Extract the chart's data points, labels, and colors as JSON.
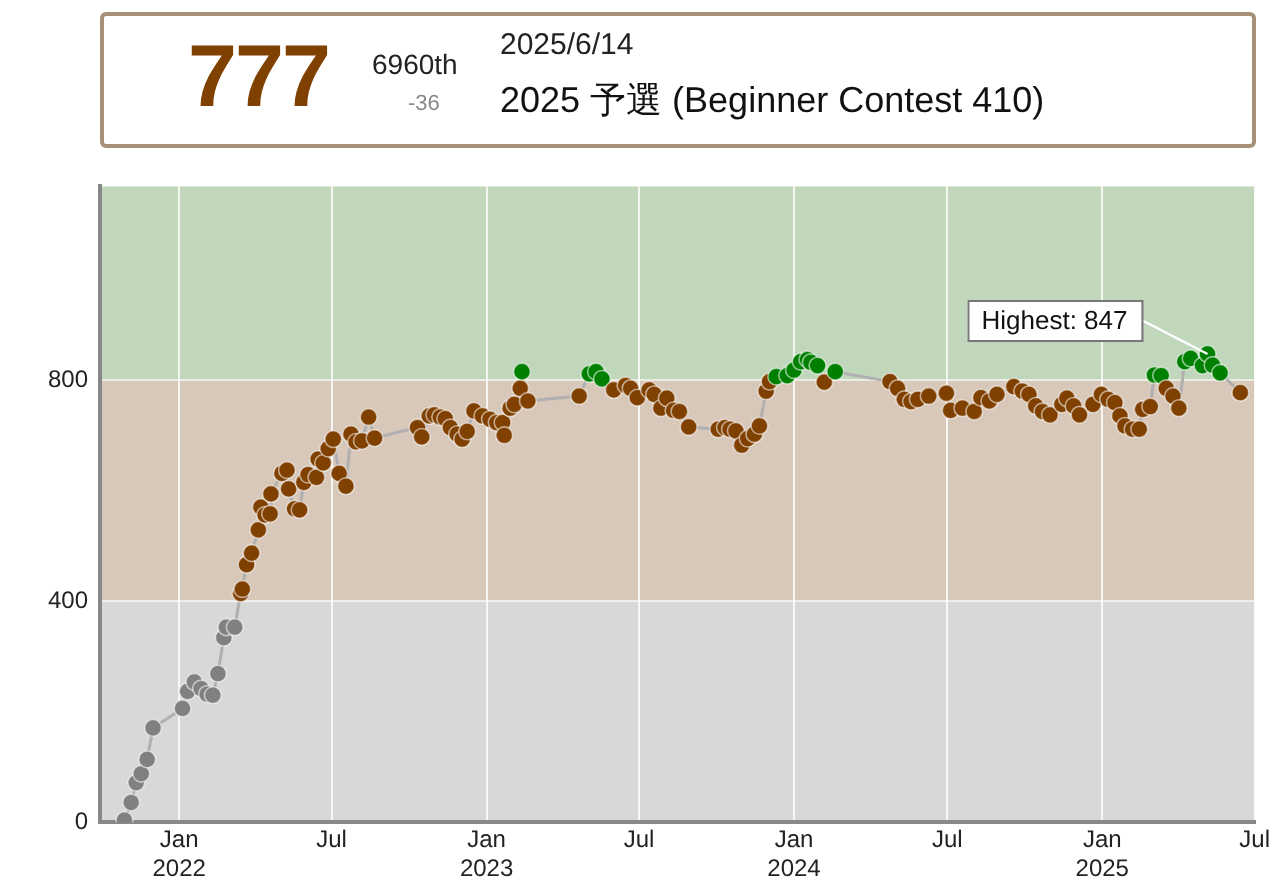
{
  "chart_data": {
    "type": "line",
    "annotations": [
      "777",
      "6960th",
      "-36",
      "2025/6/14",
      "2025 予選 (Beginner Contest 410)",
      {
        "text": "Highest: 847",
        "x": "2025-05-06",
        "y": 847
      }
    ],
    "xlim": [
      "2021-09-29",
      "2025-07-01"
    ],
    "xticks": [
      {
        "value": "2022-01-01",
        "label": "Jan 2022"
      },
      {
        "value": "2022-07-01",
        "label": "Jul"
      },
      {
        "value": "2023-01-01",
        "label": "Jan 2023"
      },
      {
        "value": "2023-07-01",
        "label": "Jul"
      },
      {
        "value": "2024-01-01",
        "label": "Jan 2024"
      },
      {
        "value": "2024-07-01",
        "label": "Jul"
      },
      {
        "value": "2025-01-01",
        "label": "Jan 2025"
      },
      {
        "value": "2025-07-01",
        "label": "Jul"
      }
    ],
    "ylim": [
      0,
      1150
    ],
    "yticks": [
      0,
      400,
      800
    ],
    "grid": true,
    "marker": "circle",
    "line_style": "solid",
    "bands": [
      {
        "axis": "y",
        "from": 0,
        "to": 400,
        "color": "#d8d8d8"
      },
      {
        "axis": "y",
        "from": 400,
        "to": 800,
        "color": "#d8c8ba"
      },
      {
        "axis": "y",
        "from": 800,
        "to": 1150,
        "color": "#c0d7bb"
      }
    ],
    "series": [
      {
        "color": "#b0b0b0",
        "x": [
          "2021-10-28",
          "2021-11-05",
          "2021-11-11",
          "2021-11-17",
          "2021-11-24",
          "2021-12-01",
          "2022-01-05",
          "2022-01-11",
          "2022-01-19",
          "2022-01-27",
          "2022-02-03",
          "2022-02-10",
          "2022-02-16",
          "2022-02-23",
          "2022-02-26",
          "2022-03-08",
          "2022-03-15",
          "2022-03-17",
          "2022-03-22",
          "2022-03-28",
          "2022-04-05",
          "2022-04-08",
          "2022-04-13",
          "2022-04-19",
          "2022-04-20",
          "2022-05-03",
          "2022-05-09",
          "2022-05-11",
          "2022-05-18",
          "2022-05-24",
          "2022-05-29",
          "2022-06-03",
          "2022-06-13",
          "2022-06-15",
          "2022-06-21",
          "2022-06-27",
          "2022-07-03",
          "2022-07-10",
          "2022-07-18",
          "2022-07-24",
          "2022-07-30",
          "2022-08-06",
          "2022-08-14",
          "2022-08-21",
          "2022-10-11",
          "2022-10-16",
          "2022-10-25",
          "2022-10-31",
          "2022-11-07",
          "2022-11-13",
          "2022-11-19",
          "2022-11-27",
          "2022-12-03",
          "2022-12-09",
          "2022-12-17",
          "2022-12-27",
          "2023-01-05",
          "2023-01-13",
          "2023-01-20",
          "2023-01-22",
          "2023-01-29",
          "2023-02-03",
          "2023-02-10",
          "2023-02-12",
          "2023-02-19",
          "2023-04-21",
          "2023-05-03",
          "2023-05-11",
          "2023-05-18",
          "2023-06-01",
          "2023-06-15",
          "2023-06-21",
          "2023-06-29",
          "2023-07-13",
          "2023-07-19",
          "2023-07-27",
          "2023-08-03",
          "2023-08-11",
          "2023-08-18",
          "2023-08-29",
          "2023-10-03",
          "2023-10-11",
          "2023-10-17",
          "2023-10-24",
          "2023-10-31",
          "2023-11-07",
          "2023-11-15",
          "2023-11-21",
          "2023-11-29",
          "2023-12-03",
          "2023-12-11",
          "2023-12-24",
          "2024-01-01",
          "2024-01-09",
          "2024-01-17",
          "2024-01-21",
          "2024-01-29",
          "2024-02-06",
          "2024-02-19",
          "2024-04-24",
          "2024-05-03",
          "2024-05-11",
          "2024-05-19",
          "2024-05-27",
          "2024-06-09",
          "2024-06-30",
          "2024-07-05",
          "2024-07-19",
          "2024-08-02",
          "2024-08-10",
          "2024-08-20",
          "2024-08-29",
          "2024-09-18",
          "2024-09-28",
          "2024-10-06",
          "2024-10-14",
          "2024-10-22",
          "2024-10-31",
          "2024-11-14",
          "2024-11-20",
          "2024-11-28",
          "2024-12-05",
          "2024-12-21",
          "2024-12-31",
          "2025-01-08",
          "2025-01-16",
          "2025-01-22",
          "2025-01-28",
          "2025-02-06",
          "2025-02-14",
          "2025-02-18",
          "2025-02-27",
          "2025-03-04",
          "2025-03-12",
          "2025-03-18",
          "2025-03-26",
          "2025-04-02",
          "2025-04-09",
          "2025-04-16",
          "2025-04-30",
          "2025-05-06",
          "2025-05-12",
          "2025-05-21",
          "2025-06-14"
        ],
        "values": [
          4,
          36,
          72,
          88,
          114,
          171,
          206,
          237,
          254,
          242,
          232,
          230,
          269,
          334,
          353,
          353,
          414,
          422,
          466,
          487,
          529,
          570,
          556,
          558,
          594,
          631,
          637,
          603,
          567,
          565,
          615,
          629,
          624,
          657,
          650,
          676,
          693,
          631,
          608,
          702,
          688,
          690,
          733,
          695,
          714,
          697,
          735,
          737,
          733,
          730,
          714,
          702,
          693,
          707,
          744,
          735,
          729,
          723,
          723,
          700,
          749,
          756,
          785,
          815,
          762,
          771,
          811,
          815,
          802,
          782,
          790,
          785,
          768,
          782,
          774,
          749,
          767,
          745,
          743,
          715,
          711,
          714,
          711,
          708,
          682,
          694,
          702,
          717,
          780,
          797,
          806,
          808,
          818,
          833,
          837,
          832,
          826,
          796,
          815,
          797,
          785,
          765,
          761,
          765,
          771,
          776,
          745,
          749,
          743,
          768,
          762,
          774,
          788,
          780,
          774,
          753,
          743,
          737,
          756,
          767,
          753,
          737,
          756,
          774,
          765,
          759,
          735,
          717,
          711,
          711,
          747,
          752,
          809,
          808,
          785,
          771,
          749,
          833,
          839,
          826,
          847,
          827,
          813,
          777
        ],
        "colors": [
          "#808080",
          "#808080",
          "#808080",
          "#808080",
          "#808080",
          "#808080",
          "#808080",
          "#808080",
          "#808080",
          "#808080",
          "#808080",
          "#808080",
          "#808080",
          "#808080",
          "#808080",
          "#808080",
          "#804000",
          "#804000",
          "#804000",
          "#804000",
          "#804000",
          "#804000",
          "#804000",
          "#804000",
          "#804000",
          "#804000",
          "#804000",
          "#804000",
          "#804000",
          "#804000",
          "#804000",
          "#804000",
          "#804000",
          "#804000",
          "#804000",
          "#804000",
          "#804000",
          "#804000",
          "#804000",
          "#804000",
          "#804000",
          "#804000",
          "#804000",
          "#804000",
          "#804000",
          "#804000",
          "#804000",
          "#804000",
          "#804000",
          "#804000",
          "#804000",
          "#804000",
          "#804000",
          "#804000",
          "#804000",
          "#804000",
          "#804000",
          "#804000",
          "#804000",
          "#804000",
          "#804000",
          "#804000",
          "#804000",
          "#008000",
          "#804000",
          "#804000",
          "#008000",
          "#008000",
          "#008000",
          "#804000",
          "#804000",
          "#804000",
          "#804000",
          "#804000",
          "#804000",
          "#804000",
          "#804000",
          "#804000",
          "#804000",
          "#804000",
          "#804000",
          "#804000",
          "#804000",
          "#804000",
          "#804000",
          "#804000",
          "#804000",
          "#804000",
          "#804000",
          "#804000",
          "#008000",
          "#008000",
          "#008000",
          "#008000",
          "#008000",
          "#008000",
          "#008000",
          "#804000",
          "#008000",
          "#804000",
          "#804000",
          "#804000",
          "#804000",
          "#804000",
          "#804000",
          "#804000",
          "#804000",
          "#804000",
          "#804000",
          "#804000",
          "#804000",
          "#804000",
          "#804000",
          "#804000",
          "#804000",
          "#804000",
          "#804000",
          "#804000",
          "#804000",
          "#804000",
          "#804000",
          "#804000",
          "#804000",
          "#804000",
          "#804000",
          "#804000",
          "#804000",
          "#804000",
          "#804000",
          "#804000",
          "#804000",
          "#804000",
          "#008000",
          "#008000",
          "#804000",
          "#804000",
          "#804000",
          "#008000",
          "#008000",
          "#008000",
          "#008000",
          "#008000",
          "#008000",
          "#804000"
        ]
      }
    ]
  }
}
